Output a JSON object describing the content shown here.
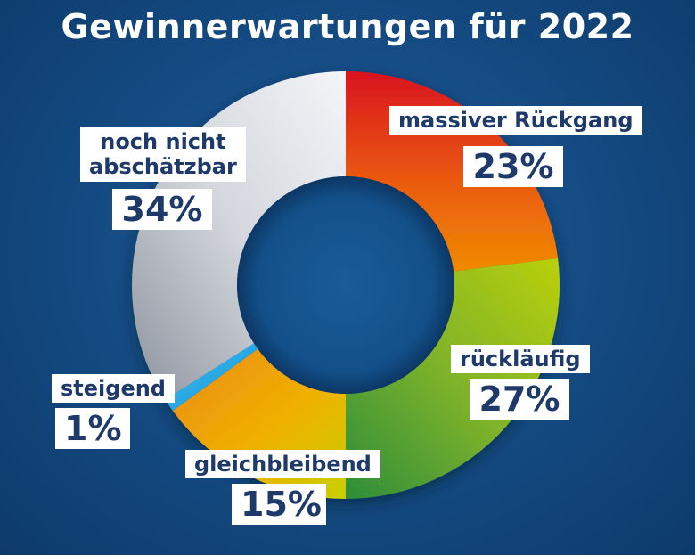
{
  "chart_data": {
    "type": "pie",
    "title": "Gewinnerwartungen für 2022",
    "legend": "none",
    "slices": [
      {
        "label": "massiver Rückgang",
        "value": 23,
        "display": "23%",
        "color": "#e64a12"
      },
      {
        "label": "rückläufig",
        "value": 27,
        "display": "27%",
        "color": "#7fb32a"
      },
      {
        "label": "gleichbleibend",
        "value": 15,
        "display": "15%",
        "color": "#e8a20f"
      },
      {
        "label": "steigend",
        "value": 1,
        "display": "1%",
        "color": "#29a9e8"
      },
      {
        "label": "noch nicht abschätzbar",
        "label_lines": [
          "noch nicht",
          "abschätzbar"
        ],
        "value": 34,
        "display": "34%",
        "color": "#c8ccd3"
      }
    ]
  }
}
